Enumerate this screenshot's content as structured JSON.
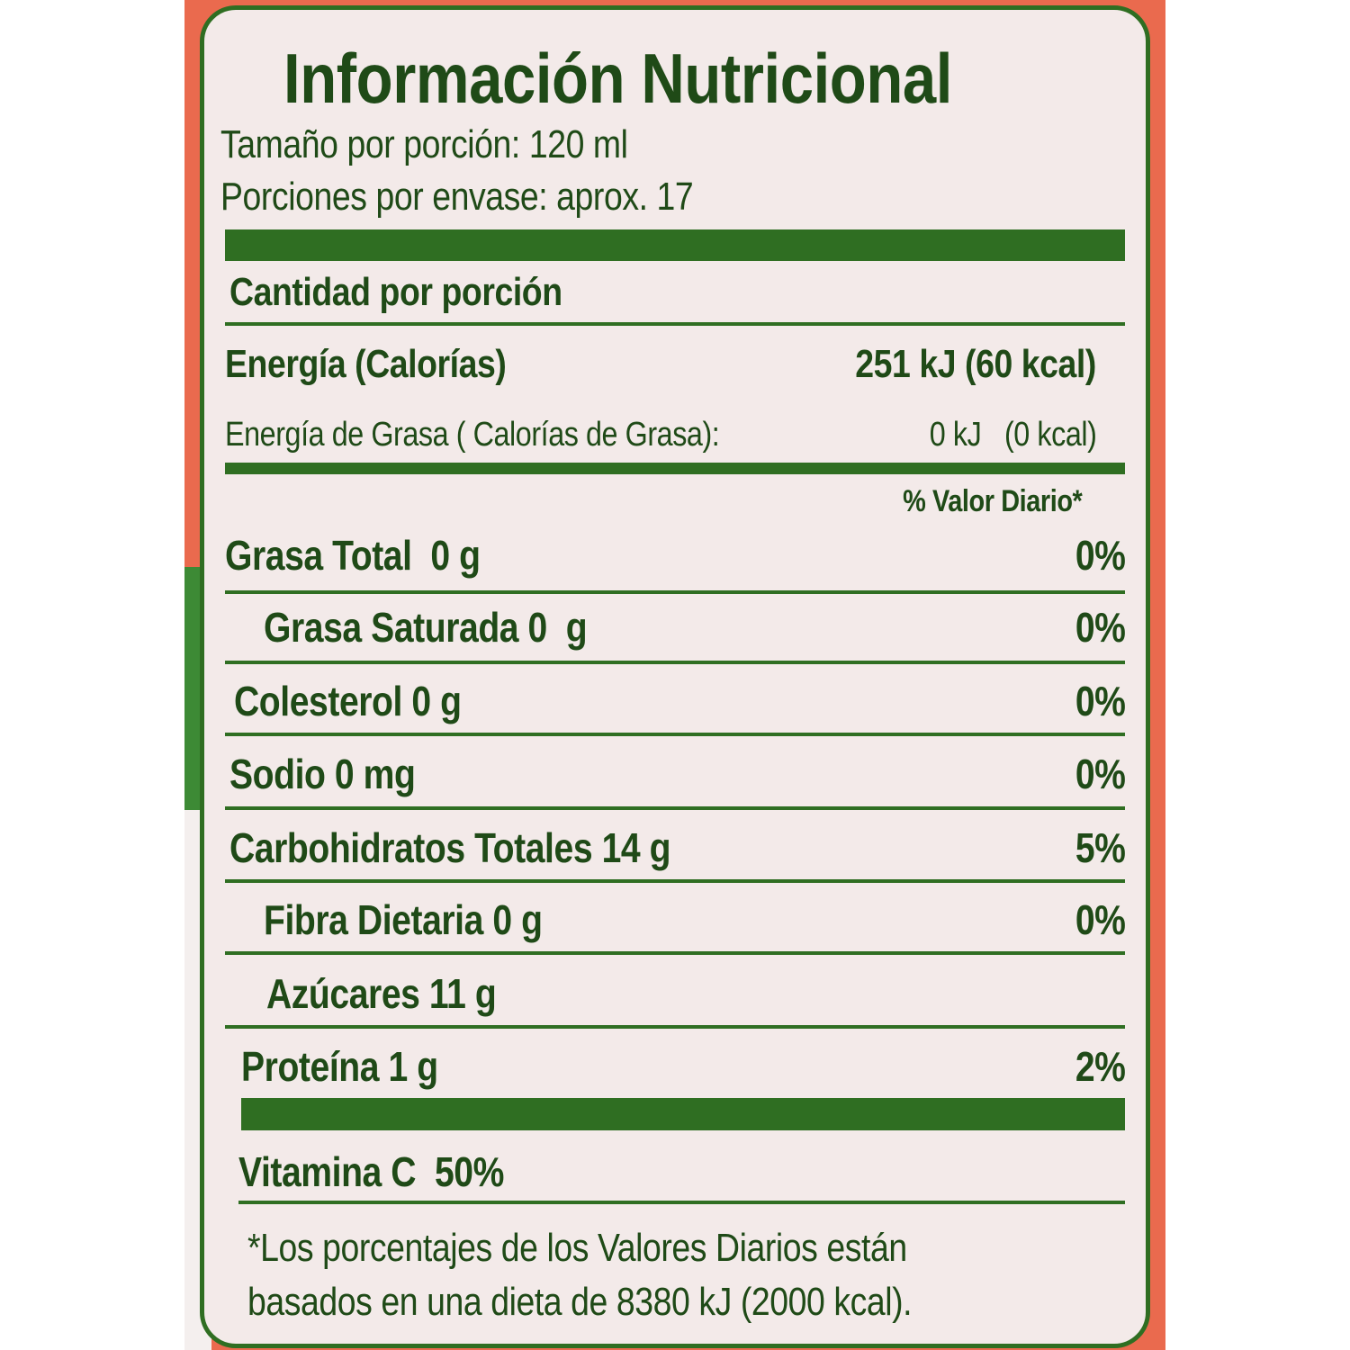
{
  "label": {
    "title": "Información Nutricional",
    "serving_size": "Tamaño por porción: 120 ml",
    "servings_per_container": "Porciones por envase: aprox. 17",
    "amount_per_serving": "Cantidad por porción",
    "energy": {
      "label": "Energía (Calorías)",
      "value": "251 kJ (60 kcal)"
    },
    "fat_energy": {
      "label": "Energía de Grasa ( Calorías de Grasa):",
      "value": "0 kJ   (0 kcal)"
    },
    "daily_value_header": "% Valor Diario*",
    "nutrients": [
      {
        "label": "Grasa Total  0 g",
        "dv": "0%"
      },
      {
        "label": "Grasa Saturada 0  g",
        "dv": "0%"
      },
      {
        "label": "Colesterol 0 g",
        "dv": "0%"
      },
      {
        "label": "Sodio 0 mg",
        "dv": "0%"
      },
      {
        "label": "Carbohidratos Totales 14 g",
        "dv": "5%"
      },
      {
        "label": "Fibra Dietaria 0 g",
        "dv": "0%"
      },
      {
        "label": "Azúcares 11 g",
        "dv": ""
      },
      {
        "label": "Proteína 1 g",
        "dv": "2%"
      }
    ],
    "vitamin": "Vitamina C  50%",
    "footnote_1": "*Los porcentajes de los Valores Diarios están",
    "footnote_2": "basados en una dieta de 8380 kJ (2000 kcal)."
  },
  "colors": {
    "text": "#1f4a17",
    "bars": "#2f6e22",
    "panel": "#f3eae9",
    "packaging_orange": "#ea6a4e",
    "packaging_green": "#3d8a35"
  }
}
